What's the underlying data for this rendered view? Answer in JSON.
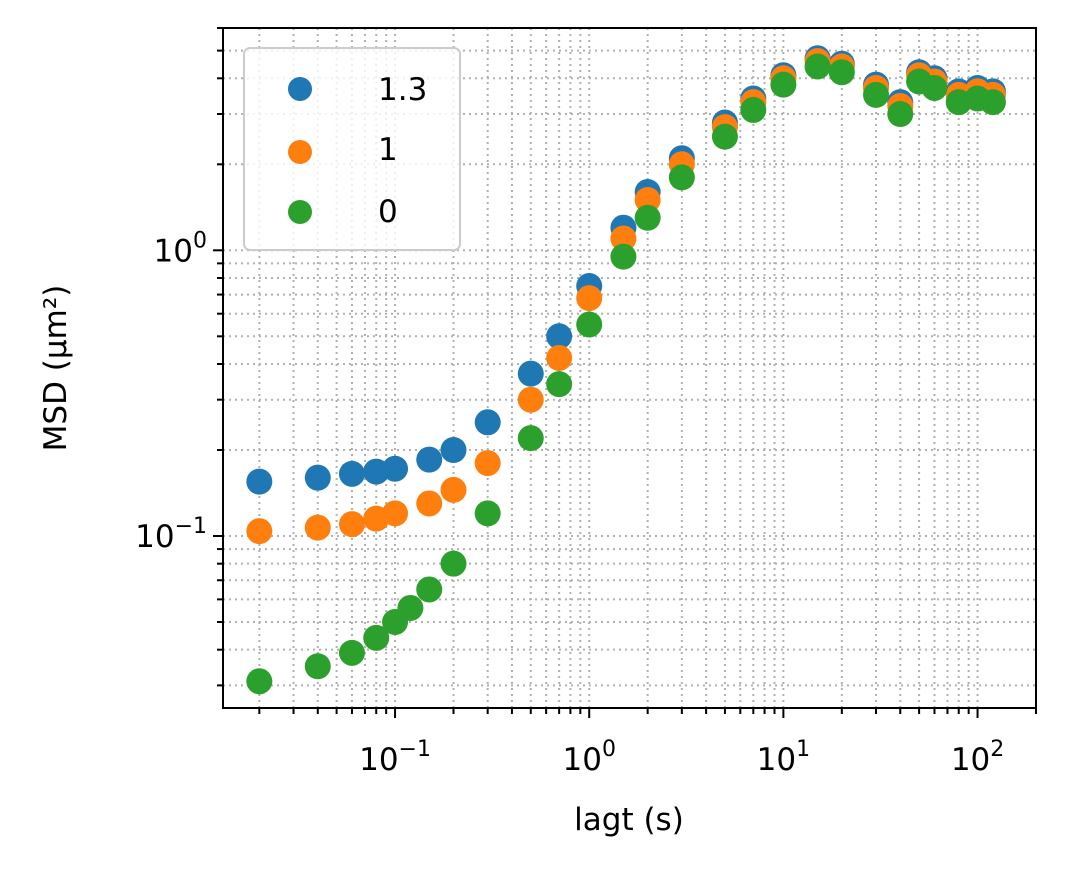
{
  "chart_data": {
    "type": "scatter",
    "xlabel": "lagt (s)",
    "ylabel": "MSD (μm²)",
    "xscale": "log",
    "yscale": "log",
    "xlim": [
      0.013,
      200
    ],
    "ylim": [
      0.025,
      6.0
    ],
    "grid": "both, dotted",
    "legend_position": "top-left",
    "x_tick_labels": [
      {
        "value": 0.1,
        "base": "10",
        "exp": "−1"
      },
      {
        "value": 1,
        "base": "10",
        "exp": "0"
      },
      {
        "value": 10,
        "base": "10",
        "exp": "1"
      },
      {
        "value": 100,
        "base": "10",
        "exp": "2"
      }
    ],
    "y_tick_labels": [
      {
        "value": 0.1,
        "base": "10",
        "exp": "−1"
      },
      {
        "value": 1,
        "base": "10",
        "exp": "0"
      }
    ],
    "series": [
      {
        "name": "1.3",
        "color": "#1f77b4",
        "x": [
          0.02,
          0.04,
          0.06,
          0.08,
          0.1,
          0.15,
          0.2,
          0.3,
          0.5,
          0.7,
          1.0,
          1.5,
          2,
          3,
          5,
          7,
          10,
          15,
          20,
          30,
          40,
          50,
          60,
          80,
          100,
          120
        ],
        "y": [
          0.155,
          0.16,
          0.165,
          0.168,
          0.172,
          0.185,
          0.2,
          0.25,
          0.37,
          0.5,
          0.75,
          1.2,
          1.6,
          2.1,
          2.8,
          3.4,
          4.1,
          4.7,
          4.5,
          3.8,
          3.3,
          4.2,
          4.0,
          3.6,
          3.7,
          3.6
        ]
      },
      {
        "name": "1",
        "color": "#ff7f0e",
        "x": [
          0.02,
          0.04,
          0.06,
          0.08,
          0.1,
          0.15,
          0.2,
          0.3,
          0.5,
          0.7,
          1.0,
          1.5,
          2,
          3,
          5,
          7,
          10,
          15,
          20,
          30,
          40,
          50,
          60,
          80,
          100,
          120
        ],
        "y": [
          0.104,
          0.107,
          0.11,
          0.115,
          0.12,
          0.13,
          0.145,
          0.18,
          0.3,
          0.42,
          0.68,
          1.1,
          1.5,
          2.0,
          2.7,
          3.3,
          4.0,
          4.6,
          4.4,
          3.7,
          3.2,
          4.1,
          3.9,
          3.5,
          3.6,
          3.5
        ]
      },
      {
        "name": "0",
        "color": "#2ca02c",
        "x": [
          0.02,
          0.04,
          0.06,
          0.08,
          0.1,
          0.12,
          0.15,
          0.2,
          0.3,
          0.5,
          0.7,
          1.0,
          1.5,
          2,
          3,
          5,
          7,
          10,
          15,
          20,
          30,
          40,
          50,
          60,
          80,
          100,
          120
        ],
        "y": [
          0.031,
          0.035,
          0.039,
          0.044,
          0.05,
          0.056,
          0.065,
          0.08,
          0.12,
          0.22,
          0.34,
          0.55,
          0.95,
          1.3,
          1.8,
          2.5,
          3.1,
          3.8,
          4.4,
          4.2,
          3.5,
          3.0,
          3.9,
          3.7,
          3.3,
          3.4,
          3.3
        ]
      }
    ]
  }
}
